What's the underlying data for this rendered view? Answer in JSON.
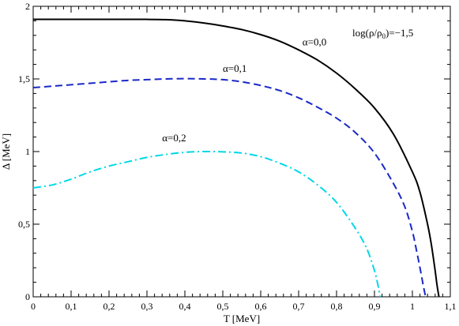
{
  "chart_data": {
    "type": "line",
    "xlabel": "T [MeV]",
    "ylabel": "Δ [MeV]",
    "xlim": [
      0,
      1.1
    ],
    "ylim": [
      0,
      2
    ],
    "xticks": [
      0,
      0.1,
      0.2,
      0.3,
      0.4,
      0.5,
      0.6,
      0.7,
      0.8,
      0.9,
      1,
      1.1
    ],
    "xtick_labels": [
      "0",
      "0,1",
      "0,2",
      "0,3",
      "0,4",
      "0,5",
      "0,6",
      "0,7",
      "0,8",
      "0,9",
      "1",
      "1,1"
    ],
    "yticks": [
      0,
      0.5,
      1,
      1.5,
      2
    ],
    "ytick_labels": [
      "0",
      "0,5",
      "1",
      "1,5",
      "2"
    ],
    "grid": false,
    "annotation": {
      "text": "log(ρ/ρ",
      "sub": "0",
      "tail": ")=−1,5"
    },
    "series": [
      {
        "label": "α=0,0",
        "color": "#000000",
        "style": "solid",
        "label_at": [
          0.71,
          1.73
        ],
        "x": [
          0,
          0.1,
          0.2,
          0.3,
          0.35,
          0.4,
          0.45,
          0.5,
          0.55,
          0.6,
          0.65,
          0.7,
          0.75,
          0.8,
          0.85,
          0.9,
          0.95,
          1.0,
          1.02,
          1.04,
          1.05,
          1.06,
          1.065,
          1.07
        ],
        "y": [
          1.91,
          1.91,
          1.91,
          1.91,
          1.908,
          1.9,
          1.885,
          1.865,
          1.84,
          1.805,
          1.76,
          1.7,
          1.63,
          1.54,
          1.43,
          1.3,
          1.12,
          0.86,
          0.72,
          0.5,
          0.36,
          0.18,
          0.08,
          0
        ]
      },
      {
        "label": "α=0,1",
        "color": "#1a28c8",
        "style": "dashed",
        "label_at": [
          0.5,
          1.55
        ],
        "x": [
          0,
          0.05,
          0.1,
          0.15,
          0.2,
          0.25,
          0.3,
          0.35,
          0.4,
          0.45,
          0.5,
          0.55,
          0.6,
          0.65,
          0.7,
          0.75,
          0.8,
          0.85,
          0.9,
          0.95,
          0.98,
          1.0,
          1.01,
          1.02,
          1.03,
          1.035
        ],
        "y": [
          1.44,
          1.45,
          1.46,
          1.47,
          1.48,
          1.49,
          1.495,
          1.5,
          1.502,
          1.5,
          1.495,
          1.48,
          1.455,
          1.42,
          1.37,
          1.305,
          1.23,
          1.13,
          0.99,
          0.78,
          0.62,
          0.45,
          0.33,
          0.2,
          0.06,
          0
        ]
      },
      {
        "label": "α=0,2",
        "color": "#00d8e8",
        "style": "dashdot",
        "label_at": [
          0.34,
          1.07
        ],
        "x": [
          0,
          0.05,
          0.1,
          0.15,
          0.2,
          0.25,
          0.3,
          0.35,
          0.4,
          0.45,
          0.5,
          0.55,
          0.6,
          0.65,
          0.7,
          0.75,
          0.8,
          0.85,
          0.88,
          0.9,
          0.91,
          0.915
        ],
        "y": [
          0.75,
          0.77,
          0.81,
          0.86,
          0.9,
          0.93,
          0.96,
          0.98,
          0.995,
          1.0,
          0.998,
          0.99,
          0.965,
          0.92,
          0.86,
          0.77,
          0.65,
          0.47,
          0.33,
          0.18,
          0.07,
          0
        ]
      }
    ]
  }
}
